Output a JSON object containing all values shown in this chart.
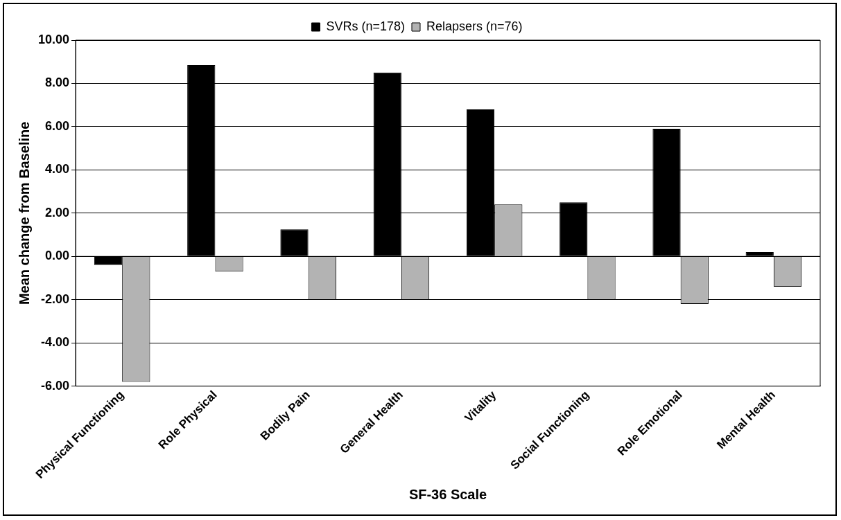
{
  "chart_data": {
    "type": "bar",
    "xlabel": "SF-36 Scale",
    "ylabel": "Mean change from Baseline",
    "categories": [
      "Physical Functioning",
      "Role Physical",
      "Bodily Pain",
      "General Health",
      "Vitality",
      "Social Functioning",
      "Role Emotional",
      "Mental Health"
    ],
    "series": [
      {
        "name": "SVRs (n=178)",
        "color": "#000000",
        "values": [
          -0.4,
          8.85,
          1.25,
          8.5,
          6.8,
          2.5,
          5.9,
          0.2
        ]
      },
      {
        "name": "Relapsers (n=76)",
        "color": "#b3b3b3",
        "values": [
          -5.8,
          -0.7,
          -2.0,
          -2.0,
          2.4,
          -2.0,
          -2.2,
          -1.4
        ]
      }
    ],
    "ylim": [
      -6,
      10
    ],
    "yticks": [
      {
        "value": -6,
        "label": "-6.00"
      },
      {
        "value": -4,
        "label": "-4.00"
      },
      {
        "value": -2,
        "label": "-2.00"
      },
      {
        "value": 0,
        "label": "0.00"
      },
      {
        "value": 2,
        "label": "2.00"
      },
      {
        "value": 4,
        "label": "4.00"
      },
      {
        "value": 6,
        "label": "6.00"
      },
      {
        "value": 8,
        "label": "8.00"
      },
      {
        "value": 10,
        "label": "10.00"
      }
    ],
    "grid": "y",
    "legend": "top"
  }
}
